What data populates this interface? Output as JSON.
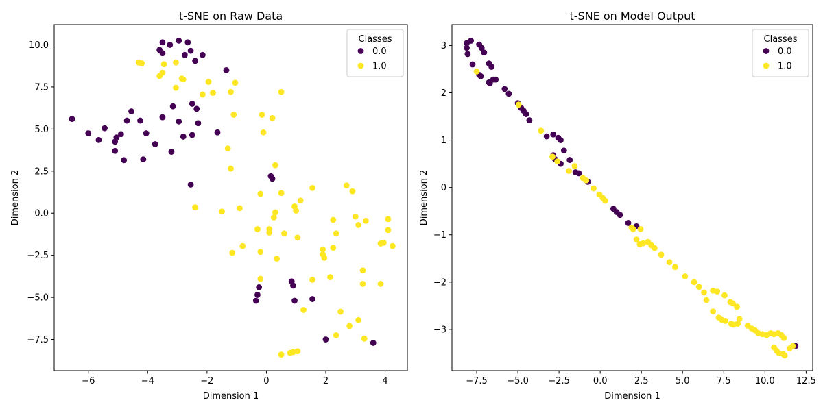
{
  "colors": {
    "class0": "#440154",
    "class1": "#fde725"
  },
  "chart_data": [
    {
      "type": "scatter",
      "title": "t-SNE on Raw Data",
      "xlabel": "Dimension 1",
      "ylabel": "Dimension 2",
      "xlim": [
        -7.15,
        4.75
      ],
      "ylim": [
        -9.35,
        11.2
      ],
      "xticks": [
        -6,
        -4,
        -2,
        0,
        2,
        4
      ],
      "yticks": [
        -7.5,
        -5.0,
        -2.5,
        0.0,
        2.5,
        5.0,
        7.5,
        10.0
      ],
      "xtick_labels": [
        "−6",
        "−4",
        "−2",
        "0",
        "2",
        "4"
      ],
      "ytick_labels": [
        "−7.5",
        "−5.0",
        "−2.5",
        "0.0",
        "2.5",
        "5.0",
        "7.5",
        "10.0"
      ],
      "grid": false,
      "legend": {
        "title": "Classes",
        "placement": "top-right",
        "entries": [
          "0.0",
          "1.0"
        ]
      },
      "series": [
        {
          "name": "0.0",
          "points": [
            [
              -3.5,
              10.15
            ],
            [
              -2.95,
              10.25
            ],
            [
              -2.65,
              10.15
            ],
            [
              -3.25,
              10.0
            ],
            [
              -3.6,
              9.7
            ],
            [
              -3.5,
              9.5
            ],
            [
              -2.55,
              9.65
            ],
            [
              -2.75,
              9.4
            ],
            [
              -2.15,
              9.4
            ],
            [
              -2.4,
              9.05
            ],
            [
              -1.35,
              8.5
            ],
            [
              -6.55,
              5.6
            ],
            [
              -5.45,
              5.05
            ],
            [
              -6.0,
              4.75
            ],
            [
              -5.65,
              4.35
            ],
            [
              -5.05,
              4.5
            ],
            [
              -5.1,
              4.25
            ],
            [
              -4.9,
              4.7
            ],
            [
              -5.1,
              3.7
            ],
            [
              -4.8,
              3.15
            ],
            [
              -4.55,
              6.05
            ],
            [
              -4.7,
              5.5
            ],
            [
              -4.25,
              5.5
            ],
            [
              -4.05,
              4.75
            ],
            [
              -3.75,
              4.1
            ],
            [
              -4.15,
              3.2
            ],
            [
              -3.5,
              5.7
            ],
            [
              -3.15,
              6.35
            ],
            [
              -2.95,
              5.45
            ],
            [
              -2.8,
              4.55
            ],
            [
              -2.5,
              4.65
            ],
            [
              -3.2,
              3.65
            ],
            [
              -2.5,
              6.5
            ],
            [
              -2.35,
              6.2
            ],
            [
              -2.3,
              5.35
            ],
            [
              -1.65,
              4.8
            ],
            [
              -2.55,
              1.7
            ],
            [
              0.15,
              2.2
            ],
            [
              0.2,
              2.05
            ],
            [
              -0.25,
              -4.4
            ],
            [
              -0.3,
              -4.85
            ],
            [
              -0.35,
              -5.2
            ],
            [
              0.85,
              -4.05
            ],
            [
              0.9,
              -4.3
            ],
            [
              0.95,
              -5.2
            ],
            [
              1.55,
              -5.1
            ],
            [
              2.0,
              -7.5
            ],
            [
              3.6,
              -7.7
            ]
          ]
        },
        {
          "name": "1.0",
          "points": [
            [
              -4.3,
              8.95
            ],
            [
              -4.2,
              8.9
            ],
            [
              -3.05,
              8.95
            ],
            [
              -3.45,
              8.85
            ],
            [
              -3.5,
              8.35
            ],
            [
              -3.6,
              8.15
            ],
            [
              -2.85,
              8.0
            ],
            [
              -2.8,
              7.95
            ],
            [
              -3.05,
              7.45
            ],
            [
              -1.95,
              7.8
            ],
            [
              -1.05,
              7.75
            ],
            [
              -1.8,
              7.15
            ],
            [
              -2.15,
              7.05
            ],
            [
              -1.2,
              7.2
            ],
            [
              0.5,
              7.2
            ],
            [
              -1.1,
              5.85
            ],
            [
              -0.15,
              5.85
            ],
            [
              0.2,
              5.65
            ],
            [
              -0.1,
              4.8
            ],
            [
              -1.3,
              3.85
            ],
            [
              -1.2,
              2.65
            ],
            [
              0.3,
              2.85
            ],
            [
              -2.4,
              0.35
            ],
            [
              -1.5,
              0.1
            ],
            [
              -0.9,
              0.3
            ],
            [
              -0.2,
              1.15
            ],
            [
              0.5,
              1.2
            ],
            [
              1.55,
              1.5
            ],
            [
              2.7,
              1.65
            ],
            [
              2.9,
              1.3
            ],
            [
              0.95,
              0.4
            ],
            [
              1.0,
              0.15
            ],
            [
              1.15,
              0.75
            ],
            [
              0.3,
              0.05
            ],
            [
              0.25,
              -0.25
            ],
            [
              -0.3,
              -0.95
            ],
            [
              0.1,
              -0.95
            ],
            [
              0.1,
              -1.15
            ],
            [
              0.6,
              -1.2
            ],
            [
              1.05,
              -1.45
            ],
            [
              -0.8,
              -1.95
            ],
            [
              -0.2,
              -2.3
            ],
            [
              0.35,
              -2.7
            ],
            [
              -1.15,
              -2.35
            ],
            [
              1.9,
              -2.15
            ],
            [
              1.9,
              -2.45
            ],
            [
              1.95,
              -2.65
            ],
            [
              2.25,
              -2.05
            ],
            [
              2.25,
              -0.4
            ],
            [
              2.35,
              -1.2
            ],
            [
              3.0,
              -0.2
            ],
            [
              3.1,
              -0.7
            ],
            [
              3.35,
              -0.45
            ],
            [
              4.1,
              -0.35
            ],
            [
              4.1,
              -1.0
            ],
            [
              3.85,
              -1.8
            ],
            [
              3.95,
              -1.75
            ],
            [
              4.25,
              -1.95
            ],
            [
              -0.2,
              -3.9
            ],
            [
              1.55,
              -3.95
            ],
            [
              2.15,
              -3.8
            ],
            [
              3.25,
              -3.4
            ],
            [
              3.25,
              -4.2
            ],
            [
              3.85,
              -4.2
            ],
            [
              1.25,
              -5.75
            ],
            [
              2.5,
              -5.85
            ],
            [
              2.8,
              -6.7
            ],
            [
              3.1,
              -6.35
            ],
            [
              2.35,
              -7.25
            ],
            [
              3.3,
              -7.45
            ],
            [
              0.5,
              -8.4
            ],
            [
              0.8,
              -8.3
            ],
            [
              0.9,
              -8.25
            ],
            [
              1.05,
              -8.2
            ]
          ]
        }
      ]
    },
    {
      "type": "scatter",
      "title": "t-SNE on Model Output",
      "xlabel": "Dimension 1",
      "ylabel": "Dimension 2",
      "xlim": [
        -9.0,
        12.9
      ],
      "ylim": [
        -3.87,
        3.44
      ],
      "xticks": [
        -7.5,
        -5.0,
        -2.5,
        0.0,
        2.5,
        5.0,
        7.5,
        10.0,
        12.5
      ],
      "yticks": [
        -3,
        -2,
        -1,
        0,
        1,
        2,
        3
      ],
      "xtick_labels": [
        "−7.5",
        "−5.0",
        "−2.5",
        "0.0",
        "2.5",
        "5.0",
        "7.5",
        "10.0",
        "12.5"
      ],
      "ytick_labels": [
        "−3",
        "−2",
        "−1",
        "0",
        "1",
        "2",
        "3"
      ],
      "grid": false,
      "legend": {
        "title": "Classes",
        "placement": "top-right",
        "entries": [
          "0.0",
          "1.0"
        ]
      },
      "series": [
        {
          "name": "0.0",
          "points": [
            [
              -8.1,
              3.05
            ],
            [
              -7.85,
              3.1
            ],
            [
              -8.1,
              2.95
            ],
            [
              -8.05,
              2.82
            ],
            [
              -7.35,
              3.02
            ],
            [
              -7.2,
              2.95
            ],
            [
              -7.05,
              2.85
            ],
            [
              -7.75,
              2.6
            ],
            [
              -6.75,
              2.62
            ],
            [
              -6.6,
              2.55
            ],
            [
              -7.35,
              2.38
            ],
            [
              -7.25,
              2.35
            ],
            [
              -6.5,
              2.28
            ],
            [
              -6.35,
              2.28
            ],
            [
              -6.75,
              2.22
            ],
            [
              -6.7,
              2.2
            ],
            [
              -5.8,
              2.08
            ],
            [
              -5.55,
              1.98
            ],
            [
              -5.0,
              1.78
            ],
            [
              -4.8,
              1.68
            ],
            [
              -4.65,
              1.62
            ],
            [
              -4.5,
              1.55
            ],
            [
              -4.3,
              1.42
            ],
            [
              -3.25,
              1.08
            ],
            [
              -2.85,
              1.12
            ],
            [
              -2.55,
              1.05
            ],
            [
              -2.4,
              1.0
            ],
            [
              -2.2,
              0.78
            ],
            [
              -2.85,
              0.68
            ],
            [
              -2.75,
              0.6
            ],
            [
              -2.4,
              0.5
            ],
            [
              -1.85,
              0.58
            ],
            [
              -1.5,
              0.32
            ],
            [
              -1.3,
              0.3
            ],
            [
              -0.75,
              0.12
            ],
            [
              0.8,
              -0.45
            ],
            [
              1.0,
              -0.52
            ],
            [
              1.2,
              -0.58
            ],
            [
              1.7,
              -0.75
            ],
            [
              2.2,
              -0.82
            ],
            [
              11.85,
              -3.35
            ]
          ]
        },
        {
          "name": "1.0",
          "points": [
            [
              -7.5,
              2.45
            ],
            [
              -4.95,
              1.75
            ],
            [
              -3.6,
              1.2
            ],
            [
              -2.9,
              0.65
            ],
            [
              -2.6,
              0.55
            ],
            [
              -1.9,
              0.35
            ],
            [
              -1.55,
              0.45
            ],
            [
              -1.05,
              0.2
            ],
            [
              -0.85,
              0.15
            ],
            [
              -0.4,
              -0.02
            ],
            [
              -0.05,
              -0.15
            ],
            [
              0.15,
              -0.22
            ],
            [
              0.3,
              -0.28
            ],
            [
              1.9,
              -0.85
            ],
            [
              2.0,
              -0.88
            ],
            [
              2.45,
              -0.88
            ],
            [
              2.2,
              -1.1
            ],
            [
              2.4,
              -1.2
            ],
            [
              2.6,
              -1.18
            ],
            [
              2.9,
              -1.15
            ],
            [
              3.1,
              -1.22
            ],
            [
              3.3,
              -1.28
            ],
            [
              3.7,
              -1.42
            ],
            [
              4.2,
              -1.58
            ],
            [
              4.55,
              -1.68
            ],
            [
              5.15,
              -1.88
            ],
            [
              5.7,
              -2.0
            ],
            [
              6.0,
              -2.1
            ],
            [
              6.3,
              -2.22
            ],
            [
              6.45,
              -2.38
            ],
            [
              6.85,
              -2.18
            ],
            [
              7.1,
              -2.2
            ],
            [
              7.55,
              -2.28
            ],
            [
              7.9,
              -2.42
            ],
            [
              8.05,
              -2.45
            ],
            [
              8.3,
              -2.52
            ],
            [
              6.85,
              -2.62
            ],
            [
              7.2,
              -2.75
            ],
            [
              7.4,
              -2.8
            ],
            [
              7.6,
              -2.82
            ],
            [
              7.95,
              -2.88
            ],
            [
              8.1,
              -2.9
            ],
            [
              8.35,
              -2.88
            ],
            [
              8.45,
              -2.78
            ],
            [
              8.95,
              -2.92
            ],
            [
              9.2,
              -2.98
            ],
            [
              9.4,
              -3.02
            ],
            [
              9.6,
              -3.08
            ],
            [
              9.85,
              -3.1
            ],
            [
              10.1,
              -3.12
            ],
            [
              10.35,
              -3.08
            ],
            [
              10.55,
              -3.1
            ],
            [
              10.8,
              -3.08
            ],
            [
              11.0,
              -3.12
            ],
            [
              11.15,
              -3.18
            ],
            [
              10.55,
              -3.38
            ],
            [
              10.7,
              -3.45
            ],
            [
              10.85,
              -3.5
            ],
            [
              11.1,
              -3.52
            ],
            [
              11.2,
              -3.55
            ],
            [
              11.5,
              -3.4
            ],
            [
              11.7,
              -3.35
            ]
          ]
        }
      ]
    }
  ]
}
